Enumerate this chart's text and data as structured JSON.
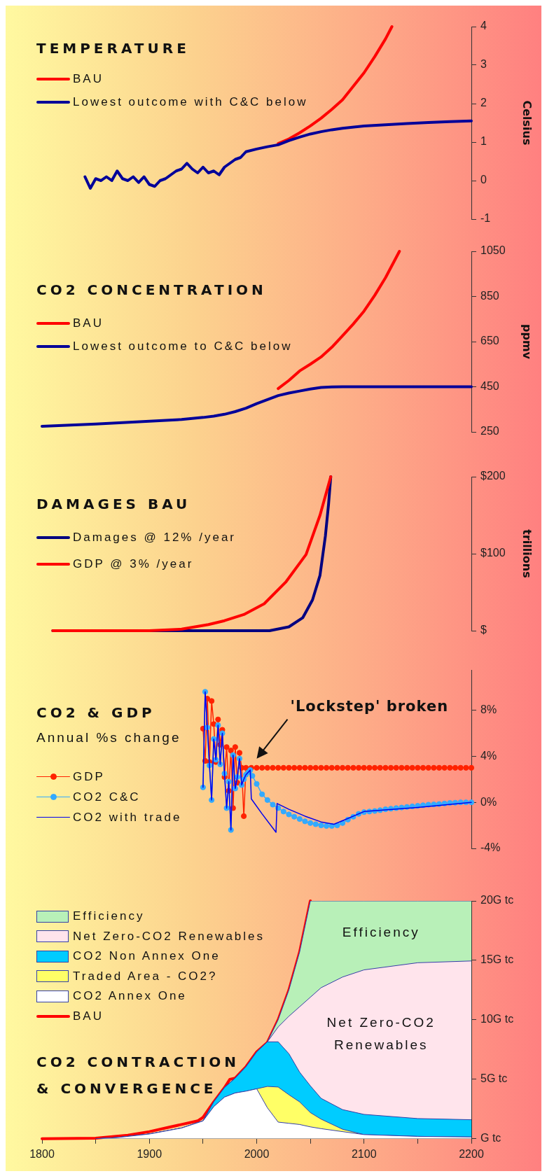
{
  "chart_data": [
    {
      "type": "line",
      "title": "TEMPERATURE",
      "ylabel": "Celsius",
      "xlim": [
        1800,
        2200
      ],
      "ylim": [
        -1,
        4
      ],
      "yticks": [
        -1,
        0,
        1,
        2,
        3,
        4
      ],
      "tick_labels": "y",
      "legend": "top left",
      "series": [
        {
          "name": "BAU",
          "color": "#ff0000",
          "x": [
            2020,
            2030,
            2040,
            2050,
            2060,
            2070,
            2080,
            2090,
            2100,
            2110,
            2120,
            2126
          ],
          "values": [
            0.96,
            1.08,
            1.24,
            1.42,
            1.62,
            1.85,
            2.1,
            2.45,
            2.8,
            3.22,
            3.68,
            4.0
          ]
        },
        {
          "name": "Lowest outcome with C&C below",
          "color": "#000099",
          "x": [
            1840,
            1845,
            1850,
            1855,
            1860,
            1865,
            1870,
            1875,
            1880,
            1885,
            1890,
            1895,
            1900,
            1905,
            1910,
            1915,
            1920,
            1925,
            1930,
            1935,
            1940,
            1945,
            1950,
            1955,
            1960,
            1965,
            1970,
            1975,
            1980,
            1985,
            1990,
            2000,
            2010,
            2020,
            2030,
            2040,
            2050,
            2060,
            2070,
            2080,
            2100,
            2120,
            2140,
            2160,
            2180,
            2200
          ],
          "values": [
            0.1,
            -0.2,
            0.05,
            0.0,
            0.1,
            0.0,
            0.25,
            0.05,
            0.0,
            0.1,
            -0.05,
            0.1,
            -0.1,
            -0.15,
            0.0,
            0.05,
            0.15,
            0.25,
            0.3,
            0.45,
            0.3,
            0.2,
            0.35,
            0.2,
            0.25,
            0.15,
            0.35,
            0.45,
            0.55,
            0.6,
            0.75,
            0.82,
            0.88,
            0.93,
            1.04,
            1.13,
            1.21,
            1.27,
            1.32,
            1.36,
            1.42,
            1.45,
            1.48,
            1.51,
            1.53,
            1.55
          ]
        }
      ]
    },
    {
      "type": "line",
      "title": "CO2 CONCENTRATION",
      "ylabel": "ppmv",
      "xlim": [
        1800,
        2200
      ],
      "ylim": [
        250,
        1050
      ],
      "yticks": [
        250,
        450,
        650,
        850,
        1050
      ],
      "tick_labels": "y",
      "legend": "top left",
      "series": [
        {
          "name": "BAU",
          "color": "#ff0000",
          "x": [
            2020,
            2030,
            2040,
            2050,
            2060,
            2070,
            2080,
            2090,
            2100,
            2110,
            2120,
            2133
          ],
          "values": [
            442,
            478,
            520,
            550,
            582,
            625,
            676,
            728,
            785,
            855,
            933,
            1050
          ]
        },
        {
          "name": "Lowest outcome to C&C below",
          "color": "#000099",
          "x": [
            1800,
            1850,
            1900,
            1930,
            1950,
            1960,
            1970,
            1980,
            1990,
            2000,
            2010,
            2020,
            2030,
            2040,
            2050,
            2060,
            2070,
            2080,
            2200
          ],
          "values": [
            275,
            285,
            297,
            305,
            314,
            320,
            328,
            340,
            355,
            375,
            393,
            411,
            422,
            431,
            440,
            447,
            449,
            450,
            450
          ]
        }
      ]
    },
    {
      "type": "line",
      "title": "DAMAGES BAU",
      "ylabel": "trillions",
      "xlim": [
        1800,
        2200
      ],
      "ylim": [
        0,
        200
      ],
      "yticks": [
        {
          "value": 0,
          "label": "$"
        },
        {
          "value": 100,
          "label": "$100"
        },
        {
          "value": 200,
          "label": "$200"
        }
      ],
      "tick_labels": "y",
      "legend": "top left",
      "series": [
        {
          "name": "Damages @ 12% /year",
          "color": "#000080",
          "x": [
            1810,
            1900,
            1950,
            2000,
            2012,
            2030,
            2043,
            2052,
            2059,
            2064,
            2067,
            2069
          ],
          "values": [
            0,
            0,
            0,
            0,
            0,
            5,
            17,
            40,
            72,
            123,
            165,
            200
          ]
        },
        {
          "name": "GDP @ 3% /year",
          "color": "#ff0000",
          "x": [
            1810,
            1900,
            1930,
            1955,
            1970,
            1988,
            2007,
            2027,
            2046,
            2059,
            2069
          ],
          "values": [
            0,
            0,
            2,
            8,
            13,
            21,
            35,
            63,
            99,
            150,
            200
          ]
        }
      ]
    },
    {
      "type": "line",
      "title": "CO2 & GDP",
      "subtitle": "Annual %s change",
      "xlim": [
        1800,
        2200
      ],
      "ylim": [
        -4,
        11.5
      ],
      "yticks": [
        {
          "value": -4,
          "label": "-4%"
        },
        {
          "value": 0,
          "label": "0%"
        },
        {
          "value": 4,
          "label": "4%"
        },
        {
          "value": 8,
          "label": "8%"
        }
      ],
      "tick_labels": "y",
      "legend": "bottom left",
      "annotations": [
        "'Lockstep' broken"
      ],
      "series": [
        {
          "name": "GDP",
          "color": "#ff2200",
          "marker": "circle",
          "x": [
            1950,
            1952,
            1954,
            1956,
            1958,
            1960,
            1962,
            1964,
            1966,
            1968,
            1970,
            1972,
            1974,
            1976,
            1978,
            1980,
            1982,
            1984,
            1986,
            1988,
            1990,
            1995,
            2000,
            2005,
            2010,
            2015,
            2020,
            2025,
            2030,
            2035,
            2040,
            2045,
            2050,
            2055,
            2060,
            2065,
            2070,
            2075,
            2080,
            2085,
            2090,
            2095,
            2100,
            2105,
            2110,
            2115,
            2120,
            2125,
            2130,
            2135,
            2140,
            2145,
            2150,
            2155,
            2160,
            2165,
            2170,
            2175,
            2180,
            2185,
            2190,
            2195,
            2200
          ],
          "values": [
            6.4,
            3.6,
            9.0,
            3.5,
            8.8,
            6.8,
            3.5,
            7.2,
            5.0,
            6.3,
            2.2,
            4.8,
            1.0,
            4.5,
            -0.5,
            4.8,
            1.7,
            4.3,
            3.0,
            -1.2,
            3,
            3,
            3,
            3,
            3,
            3,
            3,
            3,
            3,
            3,
            3,
            3,
            3,
            3,
            3,
            3,
            3,
            3,
            3,
            3,
            3,
            3,
            3,
            3,
            3,
            3,
            3,
            3,
            3,
            3,
            3,
            3,
            3,
            3,
            3,
            3,
            3,
            3,
            3,
            3,
            3,
            3,
            3
          ]
        },
        {
          "name": "CO2 C&C",
          "color": "#33aaff",
          "marker": "circle",
          "x": [
            1950,
            1952,
            1954,
            1956,
            1958,
            1960,
            1962,
            1964,
            1966,
            1968,
            1970,
            1972,
            1974,
            1976,
            1978,
            1980,
            1982,
            1984,
            1986,
            1988,
            1990,
            1992,
            1994,
            1996,
            2000,
            2005,
            2010,
            2015,
            2020,
            2025,
            2030,
            2035,
            2040,
            2045,
            2050,
            2055,
            2060,
            2065,
            2070,
            2075,
            2080,
            2085,
            2090,
            2095,
            2100,
            2105,
            2110,
            2115,
            2120,
            2125,
            2130,
            2135,
            2140,
            2145,
            2150,
            2155,
            2160,
            2165,
            2170,
            2175,
            2180,
            2185,
            2190,
            2195,
            2200
          ],
          "values": [
            1.3,
            9.6,
            6.5,
            3.2,
            0.2,
            5.5,
            3.7,
            6.7,
            3.3,
            6.0,
            2.5,
            -0.5,
            1.8,
            -2.4,
            4.1,
            1.2,
            2.2,
            3.8,
            1.5,
            2.0,
            2.4,
            2.6,
            2.8,
            2.3,
            1.6,
            0.7,
            0.2,
            -0.2,
            -0.5,
            -0.8,
            -1.05,
            -1.25,
            -1.45,
            -1.65,
            -1.8,
            -1.9,
            -2.0,
            -2.05,
            -2.05,
            -2.0,
            -1.8,
            -1.5,
            -1.25,
            -1.0,
            -0.85,
            -0.8,
            -0.75,
            -0.68,
            -0.6,
            -0.55,
            -0.5,
            -0.45,
            -0.4,
            -0.35,
            -0.3,
            -0.25,
            -0.2,
            -0.18,
            -0.15,
            -0.1,
            -0.05,
            -0.03,
            0,
            0,
            0
          ]
        },
        {
          "name": "CO2 with trade",
          "color": "#0000ee",
          "x": [
            1950,
            1952,
            1954,
            1956,
            1958,
            1960,
            1962,
            1964,
            1966,
            1968,
            1970,
            1972,
            1974,
            1976,
            1978,
            1980,
            1982,
            1984,
            1986,
            1988,
            1990,
            1994,
            1995,
            2005,
            2018,
            2019,
            2030,
            2045,
            2060,
            2072,
            2085,
            2100,
            2150,
            2200
          ],
          "values": [
            1.3,
            9.6,
            6.5,
            3.2,
            0.2,
            5.5,
            3.7,
            6.7,
            3.3,
            6.0,
            2.5,
            -0.5,
            1.8,
            -2.4,
            4.1,
            1.2,
            2.2,
            3.8,
            1.5,
            2.0,
            2.4,
            2.8,
            0.3,
            -1.0,
            -2.6,
            -0.1,
            -0.6,
            -1.2,
            -1.7,
            -1.9,
            -1.4,
            -0.8,
            -0.45,
            0
          ]
        }
      ]
    },
    {
      "type": "area",
      "title": "CO2 CONTRACTION & CONVERGENCE",
      "stacked": true,
      "xlim": [
        1800,
        2200
      ],
      "xticks": [
        1800,
        {
          "value": 1850,
          "label": null
        },
        1900,
        {
          "value": 1950,
          "label": null
        },
        2000,
        {
          "value": 2050,
          "label": null
        },
        2100,
        {
          "value": 2150,
          "label": null
        },
        2200
      ],
      "ylim": [
        0,
        20
      ],
      "yticks": [
        {
          "value": 0,
          "label": "G tc"
        },
        {
          "value": 5,
          "label": "5G tc"
        },
        {
          "value": 10,
          "label": "10G tc"
        },
        {
          "value": 15,
          "label": "15G tc"
        },
        {
          "value": 20,
          "label": "20G tc"
        }
      ],
      "legend": "top left",
      "annotations": [
        "Efficiency",
        "Net Zero-CO2 Renewables"
      ],
      "x": [
        1850,
        1870,
        1900,
        1930,
        1950,
        1960,
        1970,
        1980,
        1990,
        2000,
        2010,
        2020,
        2030,
        2040,
        2050,
        2060,
        2080,
        2100,
        2150,
        2200
      ],
      "series": [
        {
          "name": "CO2 Annex One",
          "color": "#ffffff",
          "values": [
            0,
            0.1,
            0.4,
            0.9,
            1.5,
            2.7,
            3.5,
            3.85,
            4.0,
            4.2,
            2.6,
            1.4,
            1.3,
            1.2,
            1.0,
            0.85,
            0.6,
            0.35,
            0.2,
            0.15
          ]
        },
        {
          "name": "Traded Area - CO2?",
          "color": "#ffff66",
          "values": [
            0,
            0,
            0,
            0,
            0,
            0,
            0,
            0,
            0,
            0,
            1.8,
            2.95,
            2.4,
            1.9,
            1.2,
            0.8,
            0.2,
            0,
            0,
            0
          ]
        },
        {
          "name": "CO2 Non Annex One",
          "color": "#00ccff",
          "values": [
            0,
            0,
            0,
            0,
            0,
            0.4,
            0.8,
            1.25,
            2.05,
            3.1,
            3.75,
            3.8,
            3.45,
            2.5,
            2.25,
            1.75,
            1.65,
            1.7,
            1.5,
            1.45
          ]
        },
        {
          "name": "Net Zero-CO2 Renewables",
          "color": "#ffe4ec",
          "values": [
            0,
            0,
            0,
            0,
            0,
            0,
            0,
            0,
            0,
            0,
            0,
            1.25,
            3.15,
            5.5,
            7.45,
            9.3,
            11.15,
            12.15,
            13.1,
            13.35
          ]
        },
        {
          "name": "Efficiency",
          "color": "#b8f0b8",
          "values": [
            0,
            0,
            0,
            0,
            0,
            0,
            0,
            0,
            0,
            0,
            0,
            0.6,
            2.2,
            4.6,
            8.1,
            7.3,
            6.4,
            5.8,
            5.2,
            5.05
          ]
        },
        {
          "name": "BAU",
          "type": "line",
          "color": "#ff0000",
          "x": [
            1800,
            1850,
            1880,
            1900,
            1920,
            1930,
            1945,
            1950,
            1960,
            1970,
            1975,
            1980,
            1990,
            2000,
            2010,
            2020,
            2030,
            2040,
            2050
          ],
          "values": [
            0,
            0.05,
            0.3,
            0.6,
            1.0,
            1.2,
            1.5,
            1.8,
            3.1,
            4.3,
            5.0,
            5.1,
            6.05,
            7.3,
            8.1,
            10.0,
            12.5,
            15.7,
            20
          ]
        }
      ]
    }
  ]
}
